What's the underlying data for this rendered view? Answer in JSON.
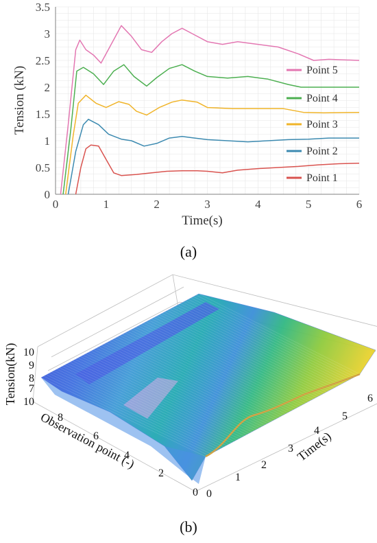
{
  "figure": {
    "caption_a": "(a)",
    "caption_b": "(b)"
  },
  "chart_data": [
    {
      "type": "line",
      "xlabel": "Time(s)",
      "ylabel": "Tension (kN)",
      "xlim": [
        0,
        6
      ],
      "ylim": [
        0,
        3.5
      ],
      "x_ticks": [
        "0",
        "1",
        "2",
        "3",
        "4",
        "5",
        "6"
      ],
      "y_ticks": [
        "0",
        "0.5",
        "1",
        "1.5",
        "2",
        "2.5",
        "3",
        "3.5"
      ],
      "grid": true,
      "legend_position": "right",
      "series": [
        {
          "name": "Point 5",
          "color": "#e377b2",
          "x": [
            0.1,
            0.25,
            0.4,
            0.48,
            0.6,
            0.75,
            0.9,
            1.1,
            1.3,
            1.5,
            1.7,
            1.9,
            2.1,
            2.3,
            2.5,
            2.7,
            3.0,
            3.3,
            3.6,
            4.0,
            4.4,
            4.8,
            5.1,
            5.4,
            6.0
          ],
          "y": [
            0.0,
            1.3,
            2.7,
            2.88,
            2.7,
            2.6,
            2.45,
            2.8,
            3.15,
            2.95,
            2.7,
            2.65,
            2.85,
            3.0,
            3.1,
            3.0,
            2.85,
            2.8,
            2.85,
            2.8,
            2.75,
            2.62,
            2.5,
            2.52,
            2.5
          ]
        },
        {
          "name": "Point 4",
          "color": "#4caf50",
          "x": [
            0.15,
            0.3,
            0.42,
            0.55,
            0.75,
            0.95,
            1.15,
            1.35,
            1.55,
            1.8,
            2.0,
            2.25,
            2.5,
            2.75,
            3.0,
            3.4,
            3.8,
            4.2,
            4.6,
            4.85,
            5.2,
            6.0
          ],
          "y": [
            0.0,
            1.2,
            2.3,
            2.37,
            2.25,
            2.05,
            2.3,
            2.42,
            2.2,
            2.02,
            2.18,
            2.35,
            2.42,
            2.3,
            2.2,
            2.17,
            2.2,
            2.15,
            2.05,
            2.0,
            2.0,
            2.0
          ]
        },
        {
          "name": "Point 3",
          "color": "#f0b429",
          "x": [
            0.2,
            0.35,
            0.45,
            0.6,
            0.8,
            1.0,
            1.25,
            1.45,
            1.6,
            1.8,
            2.05,
            2.3,
            2.5,
            2.8,
            3.0,
            3.5,
            4.0,
            4.5,
            4.9,
            5.3,
            6.0
          ],
          "y": [
            0.0,
            1.1,
            1.7,
            1.85,
            1.7,
            1.62,
            1.73,
            1.68,
            1.55,
            1.48,
            1.62,
            1.72,
            1.76,
            1.72,
            1.62,
            1.6,
            1.6,
            1.6,
            1.53,
            1.52,
            1.53
          ]
        },
        {
          "name": "Point 2",
          "color": "#3c8ab0",
          "x": [
            0.25,
            0.4,
            0.55,
            0.65,
            0.85,
            1.05,
            1.3,
            1.5,
            1.75,
            2.0,
            2.25,
            2.5,
            2.75,
            3.0,
            3.4,
            3.8,
            4.2,
            4.6,
            5.0,
            5.4,
            6.0
          ],
          "y": [
            0.0,
            0.8,
            1.3,
            1.4,
            1.3,
            1.12,
            1.03,
            1.0,
            0.9,
            0.95,
            1.05,
            1.08,
            1.05,
            1.02,
            1.0,
            0.98,
            1.0,
            1.02,
            1.03,
            1.05,
            1.05
          ]
        },
        {
          "name": "Point 1",
          "color": "#d9534f",
          "x": [
            0.4,
            0.5,
            0.6,
            0.7,
            0.85,
            1.0,
            1.15,
            1.3,
            1.6,
            1.9,
            2.2,
            2.5,
            2.8,
            3.0,
            3.3,
            3.6,
            4.0,
            4.4,
            4.8,
            5.2,
            5.6,
            6.0
          ],
          "y": [
            0.0,
            0.5,
            0.85,
            0.92,
            0.9,
            0.65,
            0.4,
            0.35,
            0.37,
            0.4,
            0.43,
            0.44,
            0.44,
            0.43,
            0.4,
            0.45,
            0.48,
            0.5,
            0.52,
            0.55,
            0.57,
            0.58
          ]
        }
      ]
    },
    {
      "type": "surface",
      "zlabel": "Tension(kN)",
      "ylabel": "Observation point (-)",
      "xlabel": "Time(s)",
      "z_ticks": [
        "10",
        "9",
        "8",
        "7"
      ],
      "y_ticks": [
        "10",
        "8",
        "6",
        "4",
        "2",
        "0"
      ],
      "x_ticks": [
        "0",
        "1",
        "2",
        "3",
        "4",
        "5",
        "6"
      ],
      "colormap": [
        "#3b50d8",
        "#3f8fd6",
        "#22a9b3",
        "#31b883",
        "#8fcb3e",
        "#e8d230"
      ]
    }
  ]
}
